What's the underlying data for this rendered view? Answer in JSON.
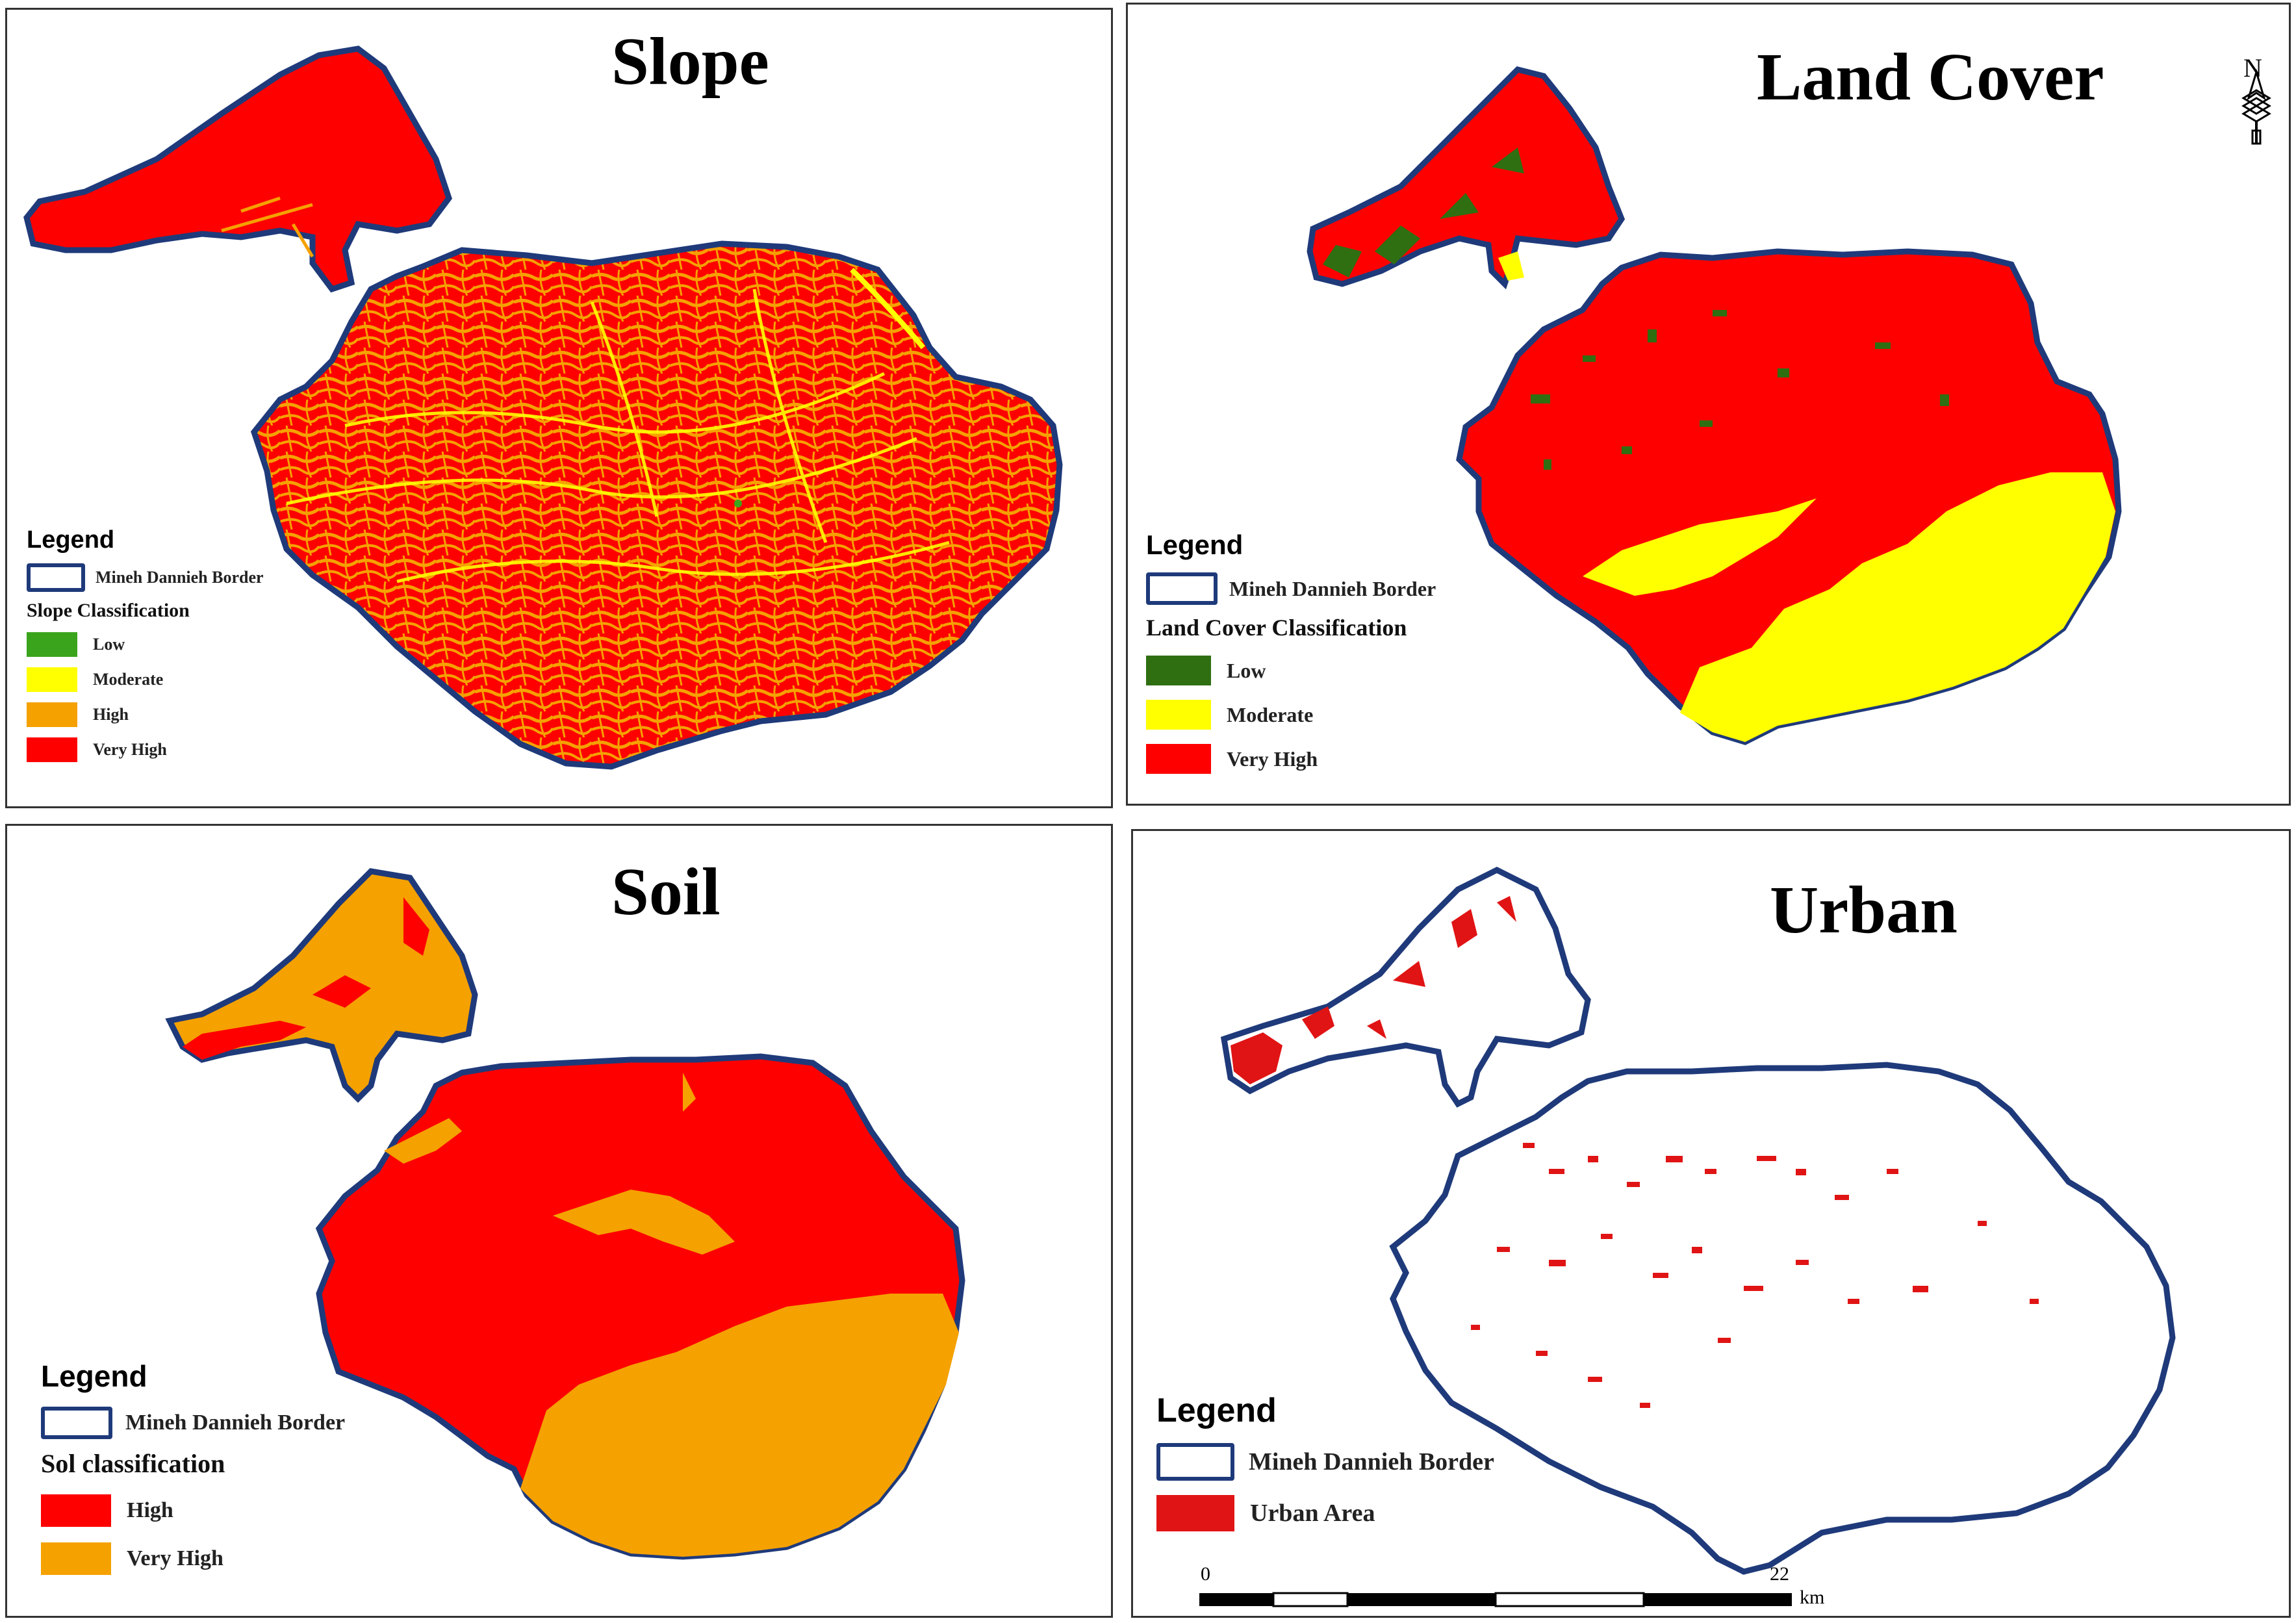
{
  "colors": {
    "border": "#1f3a7a",
    "low_slope": "#3aa51c",
    "moderate": "#ffff00",
    "high_slope": "#f5a100",
    "very_high": "#ff0000",
    "low_landcover": "#2f6f12",
    "soil_very_high": "#f5a100",
    "urban": "#e01414"
  },
  "panels": {
    "slope": {
      "title": "Slope",
      "legend_title": "Legend",
      "border_label": "Mineh Dannieh Border",
      "classification_title": "Slope Classification",
      "classes": [
        {
          "label": "Low",
          "color": "#3aa51c"
        },
        {
          "label": "Moderate",
          "color": "#ffff00"
        },
        {
          "label": "High",
          "color": "#f5a100"
        },
        {
          "label": "Very High",
          "color": "#ff0000"
        }
      ]
    },
    "landcover": {
      "title": "Land Cover",
      "legend_title": "Legend",
      "border_label": "Mineh Dannieh Border",
      "classification_title": "Land Cover Classification",
      "classes": [
        {
          "label": "Low",
          "color": "#2f6f12"
        },
        {
          "label": "Moderate",
          "color": "#ffff00"
        },
        {
          "label": "Very High",
          "color": "#ff0000"
        }
      ],
      "north_label": "N"
    },
    "soil": {
      "title": "Soil",
      "legend_title": "Legend",
      "border_label": "Mineh Dannieh Border",
      "classification_title": "Sol classification",
      "classes": [
        {
          "label": "High",
          "color": "#ff0000"
        },
        {
          "label": "Very High",
          "color": "#f5a100"
        }
      ]
    },
    "urban": {
      "title": "Urban",
      "legend_title": "Legend",
      "border_label": "Mineh Dannieh Border",
      "classes": [
        {
          "label": "Urban Area",
          "color": "#e01414"
        }
      ],
      "scale": {
        "start": "0",
        "end": "22",
        "unit": "km"
      }
    }
  }
}
